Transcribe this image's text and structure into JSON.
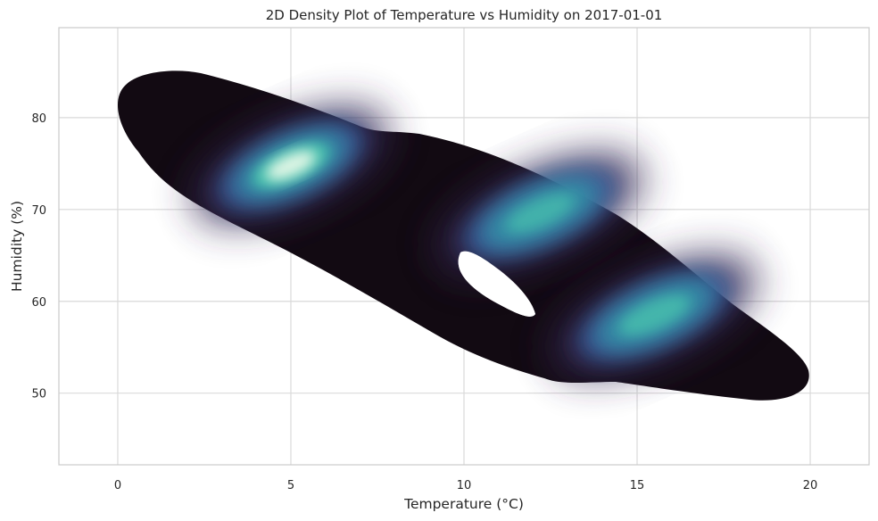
{
  "chart_data": {
    "type": "heatmap",
    "subtype": "kde-density",
    "title": "2D Density Plot of Temperature vs Humidity on 2017-01-01",
    "xlabel": "Temperature (°C)",
    "ylabel": "Humidity (%)",
    "xlim": [
      -1.7,
      21.7
    ],
    "ylim": [
      42.2,
      89.8
    ],
    "xticks": [
      0,
      5,
      10,
      15,
      20
    ],
    "yticks": [
      50,
      60,
      70,
      80
    ],
    "grid": true,
    "colormap": "mako",
    "colormap_stops": [
      "#0b0405",
      "#382a54",
      "#395d9c",
      "#3497a9",
      "#49c1ad",
      "#def5e5"
    ],
    "clusters": [
      {
        "x": 5.0,
        "y": 74.8,
        "peak": 1.0
      },
      {
        "x": 12.2,
        "y": 69.6,
        "peak": 0.6
      },
      {
        "x": 15.5,
        "y": 58.5,
        "peak": 0.7
      }
    ],
    "hole": {
      "x": 11.3,
      "y": 61.6
    }
  }
}
